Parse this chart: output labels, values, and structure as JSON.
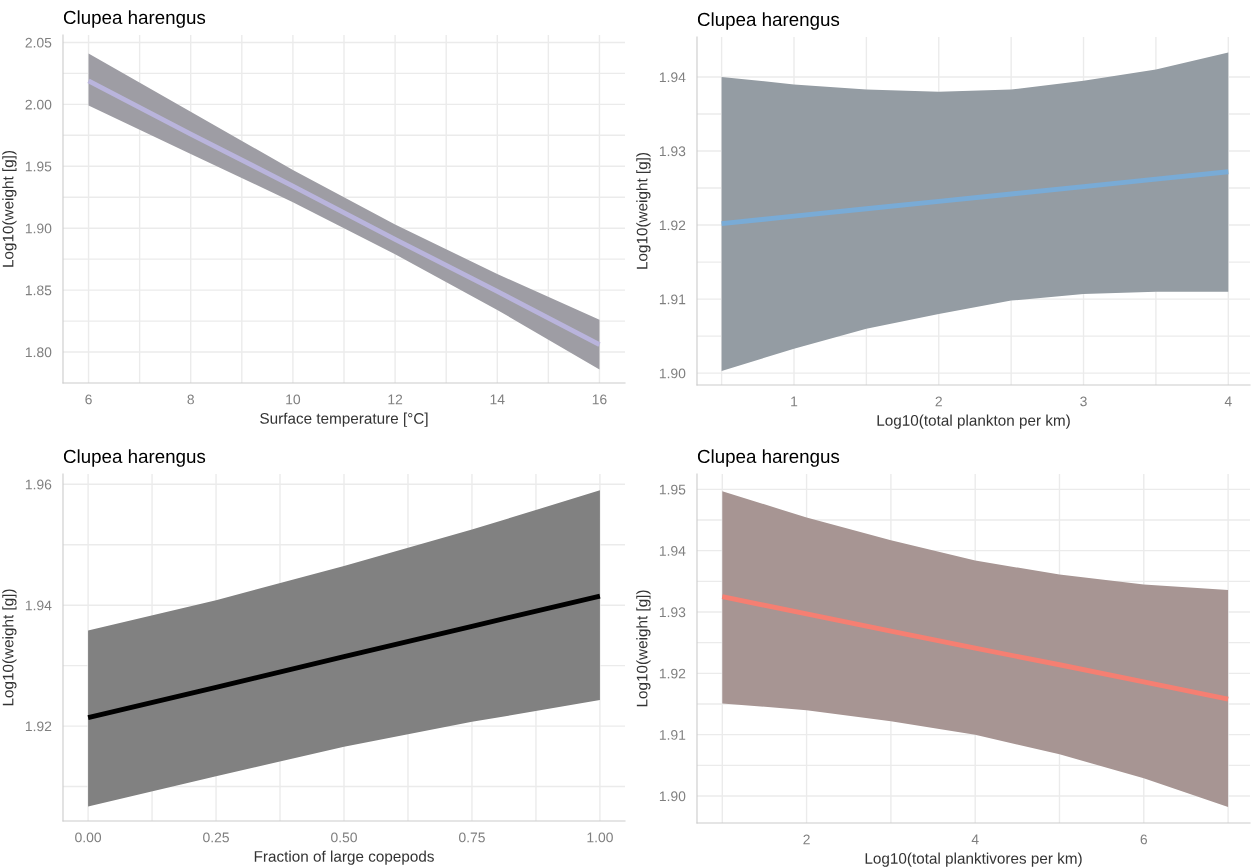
{
  "chart_data": [
    {
      "type": "line",
      "title": "Clupea harengus",
      "xlabel": "Surface temperature [°C]",
      "ylabel": "Log10(weight [g])",
      "grid": true,
      "line_style": "solid",
      "xlim": [
        5.5,
        16.5
      ],
      "ylim": [
        1.775,
        2.056
      ],
      "xticks": [
        6,
        {
          "value": 7,
          "label": null
        },
        8,
        {
          "value": 9,
          "label": null
        },
        10,
        {
          "value": 11,
          "label": null
        },
        12,
        {
          "value": 13,
          "label": null
        },
        14,
        {
          "value": 15,
          "label": null
        },
        16
      ],
      "yticks": [
        {
          "value": 1.8,
          "label": "1.80"
        },
        {
          "value": 1.825,
          "label": null
        },
        {
          "value": 1.85,
          "label": "1.85"
        },
        {
          "value": 1.875,
          "label": null
        },
        {
          "value": 1.9,
          "label": "1.90"
        },
        {
          "value": 1.925,
          "label": null
        },
        {
          "value": 1.95,
          "label": "1.95"
        },
        {
          "value": 1.975,
          "label": null
        },
        {
          "value": 2.0,
          "label": "2.00"
        },
        {
          "value": 2.025,
          "label": null
        },
        {
          "value": 2.05,
          "label": "2.05"
        }
      ],
      "x": [
        6,
        8,
        10,
        12,
        14,
        16
      ],
      "series": [
        {
          "color": "#b9b4dc",
          "values": [
            2.019,
            1.976,
            1.934,
            1.891,
            1.849,
            1.806
          ],
          "upper": [
            2.041,
            1.994,
            1.947,
            1.903,
            1.863,
            1.826
          ],
          "lower": [
            1.999,
            1.96,
            1.921,
            1.879,
            1.834,
            1.786
          ]
        }
      ]
    },
    {
      "type": "line",
      "title": "Clupea harengus",
      "xlabel": "Log10(total plankton per km)",
      "ylabel": "Log10(weight [g])",
      "grid": true,
      "line_style": "solid",
      "xlim": [
        0.33,
        4.15
      ],
      "ylim": [
        1.8984,
        1.9454
      ],
      "xticks": [
        {
          "value": 0.5,
          "label": null
        },
        1,
        {
          "value": 1.5,
          "label": null
        },
        2,
        {
          "value": 2.5,
          "label": null
        },
        3,
        {
          "value": 3.5,
          "label": null
        },
        4
      ],
      "yticks": [
        {
          "value": 1.9,
          "label": "1.90"
        },
        {
          "value": 1.905,
          "label": null
        },
        1.91,
        {
          "value": 1.915,
          "label": null
        },
        1.92,
        {
          "value": 1.925,
          "label": null
        },
        1.93,
        {
          "value": 1.935,
          "label": null
        },
        1.94
      ],
      "x": [
        0.5,
        1,
        1.5,
        2,
        2.5,
        3,
        3.5,
        4
      ],
      "series": [
        {
          "color": "#79abd6",
          "values": [
            1.9202,
            1.9212,
            1.9222,
            1.9232,
            1.9242,
            1.9252,
            1.9262,
            1.9272
          ],
          "upper": [
            1.94,
            1.939,
            1.9383,
            1.938,
            1.9383,
            1.9395,
            1.941,
            1.9433
          ],
          "lower": [
            1.9003,
            1.9033,
            1.906,
            1.908,
            1.9098,
            1.9107,
            1.911,
            1.911
          ]
        }
      ]
    },
    {
      "type": "line",
      "title": "Clupea harengus",
      "xlabel": "Fraction of large copepods",
      "ylabel": "Log10(weight [g])",
      "grid": true,
      "line_style": "solid",
      "xlim": [
        -0.049,
        1.049
      ],
      "ylim": [
        1.9043,
        1.9617
      ],
      "xticks": [
        {
          "value": 0,
          "label": "0.00"
        },
        {
          "value": 0.125,
          "label": null
        },
        {
          "value": 0.25,
          "label": "0.25"
        },
        {
          "value": 0.375,
          "label": null
        },
        {
          "value": 0.5,
          "label": "0.50"
        },
        {
          "value": 0.625,
          "label": null
        },
        {
          "value": 0.75,
          "label": "0.75"
        },
        {
          "value": 0.875,
          "label": null
        },
        {
          "value": 1,
          "label": "1.00"
        }
      ],
      "yticks": [
        {
          "value": 1.91,
          "label": null
        },
        1.92,
        {
          "value": 1.93,
          "label": null
        },
        1.94,
        {
          "value": 1.95,
          "label": null
        },
        1.96
      ],
      "x": [
        0,
        0.25,
        0.5,
        0.75,
        1
      ],
      "series": [
        {
          "color": "#000000",
          "values": [
            1.9214,
            1.9264,
            1.9315,
            1.9365,
            1.9415
          ],
          "upper": [
            1.9358,
            1.9408,
            1.9465,
            1.9525,
            1.959
          ],
          "lower": [
            1.9067,
            1.9117,
            1.9166,
            1.9207,
            1.9243
          ]
        }
      ]
    },
    {
      "type": "line",
      "title": "Clupea harengus",
      "xlabel": "Log10(total planktivores per km)",
      "ylabel": "Log10(weight [g])",
      "grid": true,
      "line_style": "solid",
      "xlim": [
        0.7,
        7.26
      ],
      "ylim": [
        1.8956,
        1.9525
      ],
      "xticks": [
        {
          "value": 1,
          "label": null
        },
        2,
        {
          "value": 3,
          "label": null
        },
        4,
        {
          "value": 5,
          "label": null
        },
        6,
        {
          "value": 7,
          "label": null
        }
      ],
      "yticks": [
        {
          "value": 1.9,
          "label": "1.90"
        },
        {
          "value": 1.905,
          "label": null
        },
        1.91,
        {
          "value": 1.915,
          "label": null
        },
        1.92,
        {
          "value": 1.925,
          "label": null
        },
        1.93,
        {
          "value": 1.935,
          "label": null
        },
        1.94,
        {
          "value": 1.945,
          "label": null
        },
        1.95
      ],
      "x": [
        1,
        2,
        3,
        4,
        5,
        6,
        7
      ],
      "series": [
        {
          "color": "#f57f72",
          "values": [
            1.9325,
            1.9297,
            1.9269,
            1.9241,
            1.9214,
            1.9186,
            1.9158
          ],
          "upper": [
            1.9497,
            1.9454,
            1.9417,
            1.9384,
            1.9361,
            1.9345,
            1.9336
          ],
          "lower": [
            1.9151,
            1.914,
            1.9122,
            1.91,
            1.9068,
            1.9029,
            1.8982
          ]
        }
      ]
    }
  ]
}
